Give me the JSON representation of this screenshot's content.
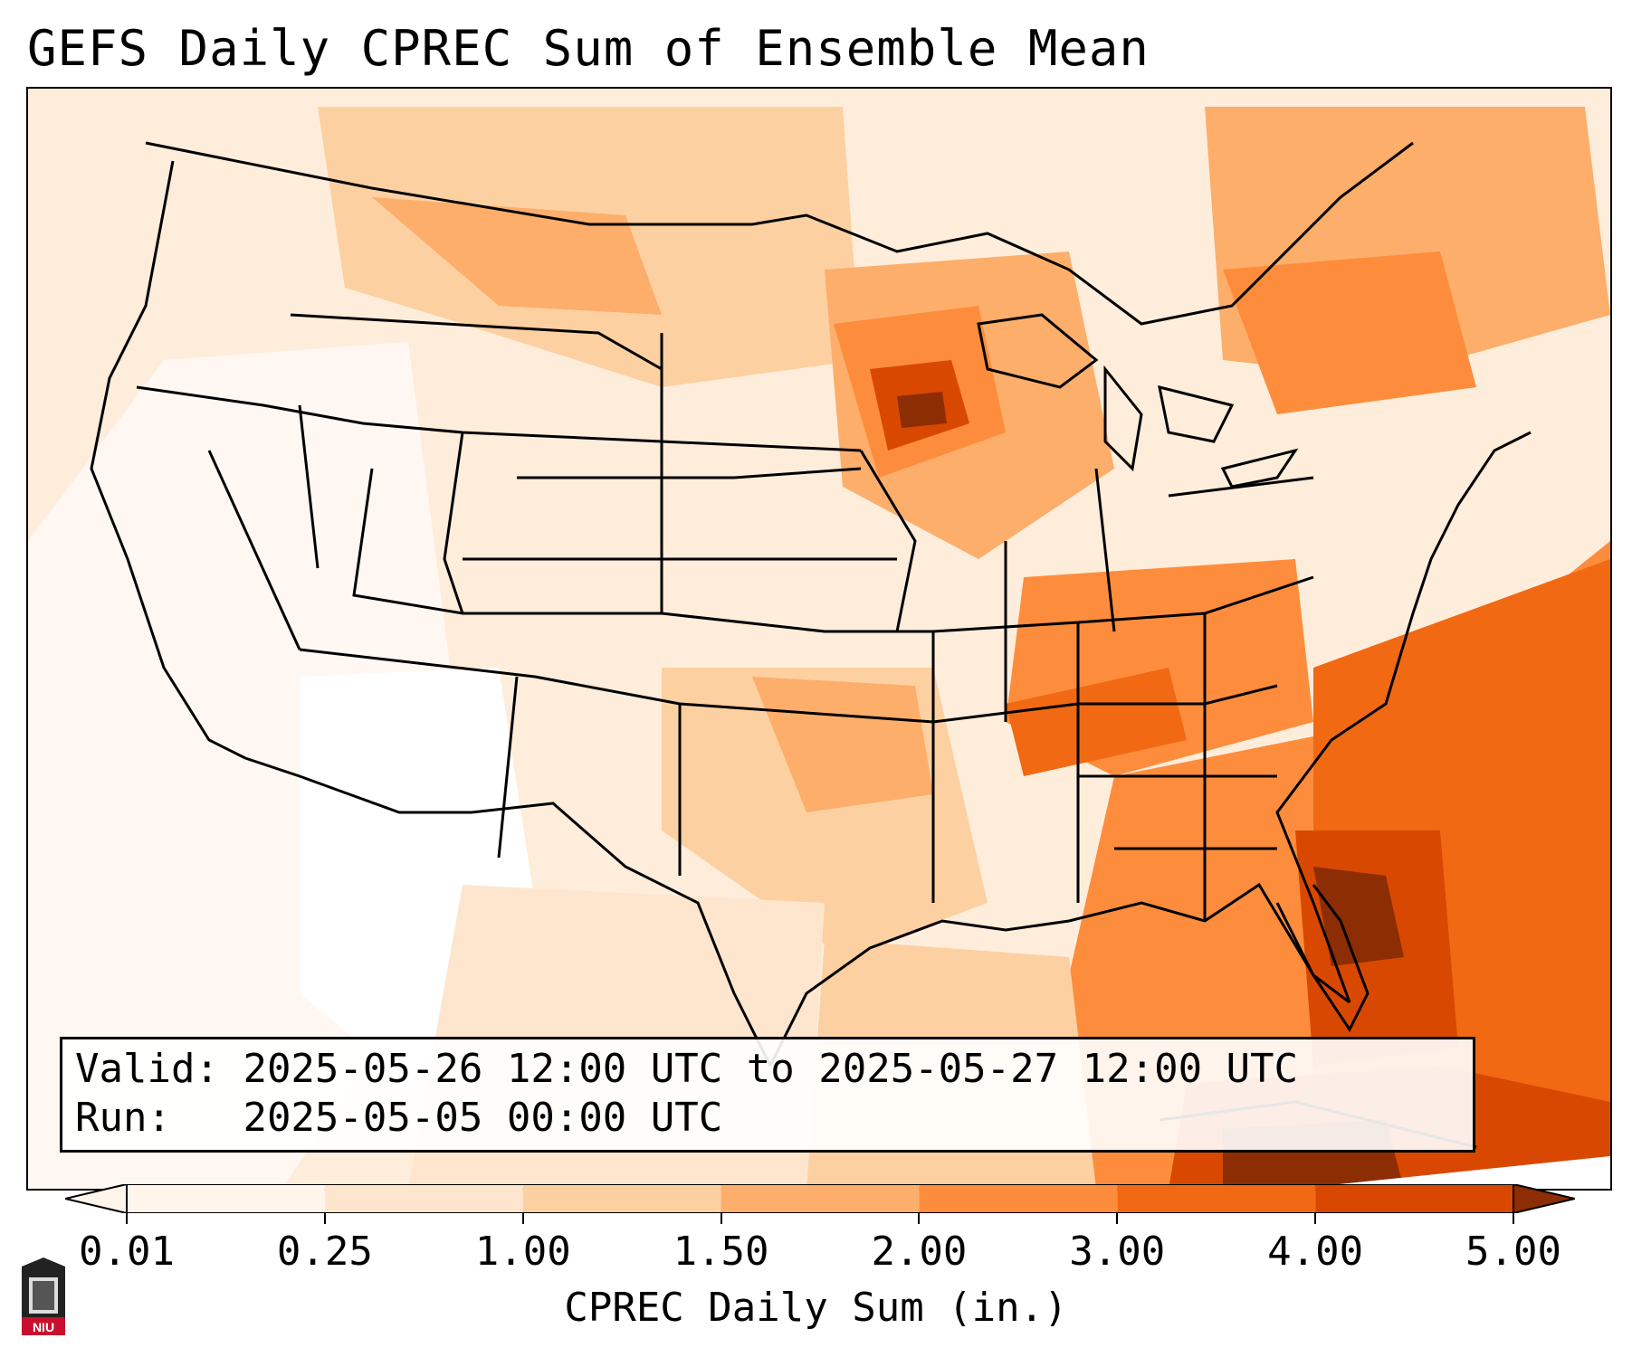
{
  "title": "GEFS Daily CPREC Sum of Ensemble Mean",
  "info": {
    "valid_label": "Valid:",
    "valid_value": "2025-05-26 12:00 UTC to 2025-05-27 12:00 UTC",
    "run_label": "Run:",
    "run_value": "2025-05-05 00:00 UTC"
  },
  "colorbar": {
    "label": "CPREC Daily Sum (in.)",
    "ticks": [
      "0.01",
      "0.25",
      "1.00",
      "1.50",
      "2.00",
      "3.00",
      "4.00",
      "5.00"
    ],
    "colors": [
      "#fff5eb",
      "#fee6ce",
      "#fdd0a2",
      "#fdae6b",
      "#fd8d3c",
      "#f16913",
      "#d94801",
      "#8c2d04"
    ],
    "extend": "both"
  },
  "logo": {
    "text": "NIU",
    "color": "#c8102e"
  }
}
